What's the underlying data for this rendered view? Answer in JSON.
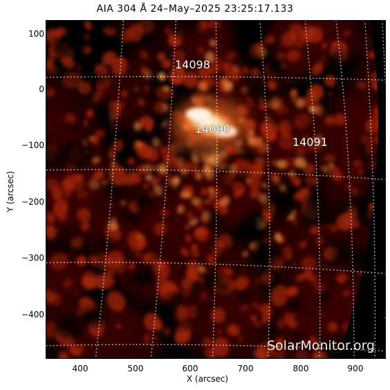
{
  "plot": {
    "title": "AIA 304 Å 24–May–2025 23:25:17.133",
    "x_axis_title": "X (arcsec)",
    "y_axis_title": "Y (arcsec)",
    "x_ticks": [
      "400",
      "500",
      "600",
      "700",
      "800",
      "900"
    ],
    "y_ticks": [
      "100",
      "0",
      "−100",
      "−200",
      "−300",
      "−400"
    ],
    "x_range": [
      340,
      950
    ],
    "y_range": [
      -480,
      125
    ]
  },
  "active_regions": [
    "14098",
    "14090",
    "14091"
  ],
  "watermark": "SolarMonitor.org",
  "colors": {
    "background": "#000000",
    "plasma_dark": "#3a0500",
    "plasma_mid": "#b02a08",
    "plasma_bright": "#ff9a4a",
    "flare_core": "#fff6e6",
    "grid": "#ffffff"
  }
}
